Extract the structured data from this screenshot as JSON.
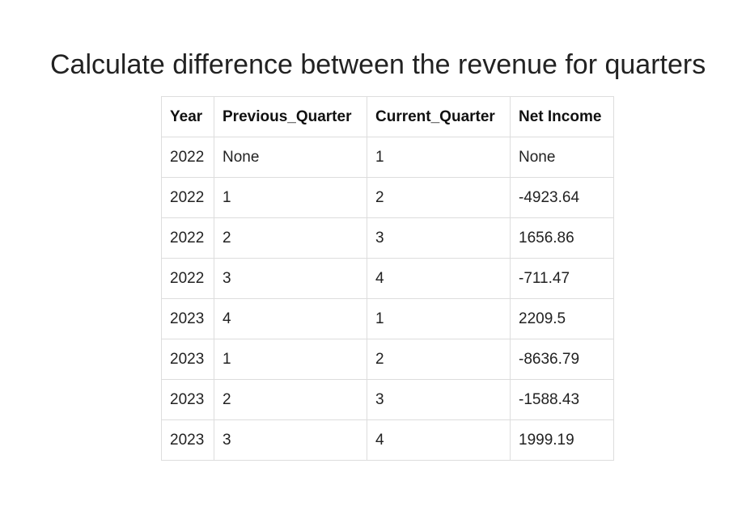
{
  "page": {
    "title": "Calculate difference between the revenue for quarters"
  },
  "table": {
    "headers": [
      "Year",
      "Previous_Quarter",
      "Current_Quarter",
      "Net Income"
    ],
    "rows": [
      [
        "2022",
        "None",
        "1",
        "None"
      ],
      [
        "2022",
        "1",
        "2",
        "-4923.64"
      ],
      [
        "2022",
        "2",
        "3",
        "1656.86"
      ],
      [
        "2022",
        "3",
        "4",
        "-711.47"
      ],
      [
        "2023",
        "4",
        "1",
        "2209.5"
      ],
      [
        "2023",
        "1",
        "2",
        "-8636.79"
      ],
      [
        "2023",
        "2",
        "3",
        "-1588.43"
      ],
      [
        "2023",
        "3",
        "4",
        "1999.19"
      ]
    ]
  }
}
